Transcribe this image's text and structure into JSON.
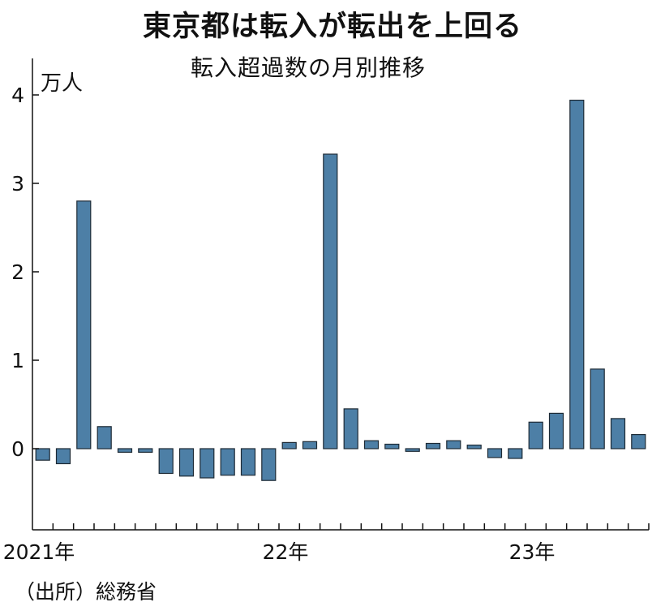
{
  "header": {
    "title": "東京都は転入が転出を上回る",
    "subtitle": "転入超過数の月別推移"
  },
  "axis": {
    "unit": "万人"
  },
  "footer": {
    "source": "（出所）総務省"
  },
  "colors": {
    "bar_fill": "#4d7fa6",
    "bar_stroke": "#1d2a35",
    "axis": "#111111"
  },
  "chart_data": {
    "type": "bar",
    "title": "東京都は転入が転出を上回る",
    "subtitle": "転入超過数の月別推移",
    "ylabel": "万人",
    "ylim": [
      -0.9,
      4.4
    ],
    "yticks": [
      0,
      1,
      2,
      3,
      4
    ],
    "grid": false,
    "x_start": "2021-01",
    "x_end": "2023-06",
    "categories": [
      "2021-01",
      "2021-02",
      "2021-03",
      "2021-04",
      "2021-05",
      "2021-06",
      "2021-07",
      "2021-08",
      "2021-09",
      "2021-10",
      "2021-11",
      "2021-12",
      "2022-01",
      "2022-02",
      "2022-03",
      "2022-04",
      "2022-05",
      "2022-06",
      "2022-07",
      "2022-08",
      "2022-09",
      "2022-10",
      "2022-11",
      "2022-12",
      "2023-01",
      "2023-02",
      "2023-03",
      "2023-04",
      "2023-05",
      "2023-06"
    ],
    "values": [
      -0.13,
      -0.17,
      2.8,
      0.25,
      -0.04,
      -0.04,
      -0.28,
      -0.31,
      -0.33,
      -0.3,
      -0.3,
      -0.36,
      0.07,
      0.08,
      3.33,
      0.45,
      0.09,
      0.05,
      -0.03,
      0.06,
      0.09,
      0.04,
      -0.1,
      -0.11,
      0.3,
      0.4,
      3.94,
      0.9,
      0.34,
      0.16
    ],
    "xtick_labels": [
      {
        "at": "2021-01",
        "label": "2021年"
      },
      {
        "at": "2022-01",
        "label": "22年"
      },
      {
        "at": "2023-01",
        "label": "23年"
      }
    ]
  }
}
